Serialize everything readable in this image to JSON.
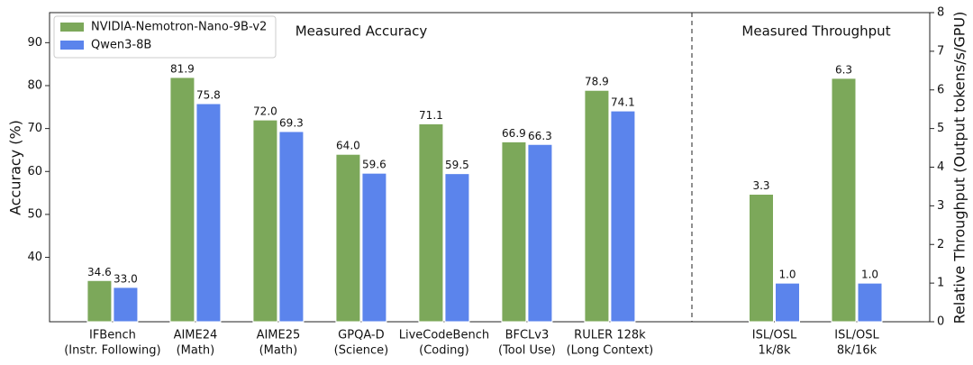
{
  "chart_data": [
    {
      "type": "bar",
      "title": "Measured Accuracy",
      "y_label": "Accuracy (%)",
      "categories": [
        [
          "IFBench",
          "(Instr. Following)"
        ],
        [
          "AIME24",
          "(Math)"
        ],
        [
          "AIME25",
          "(Math)"
        ],
        [
          "GPQA-D",
          "(Science)"
        ],
        [
          "LiveCodeBench",
          "(Coding)"
        ],
        [
          "BFCLv3",
          "(Tool Use)"
        ],
        [
          "RULER 128k",
          "(Long Context)"
        ]
      ],
      "series": [
        {
          "name": "NVIDIA-Nemotron-Nano-9B-v2",
          "color": "#7ca85a",
          "values": [
            34.6,
            81.9,
            72.0,
            64.0,
            71.1,
            66.9,
            78.9
          ],
          "value_labels": [
            "34.6",
            "81.9",
            "72.0",
            "64.0",
            "71.1",
            "66.9",
            "78.9"
          ]
        },
        {
          "name": "Qwen3-8B",
          "color": "#5b84ec",
          "values": [
            33.0,
            75.8,
            69.3,
            59.6,
            59.5,
            66.3,
            74.1
          ],
          "value_labels": [
            "33.0",
            "75.8",
            "69.3",
            "59.6",
            "59.5",
            "66.3",
            "74.1"
          ]
        }
      ],
      "ylim": [
        25,
        97
      ],
      "yticks": [
        40,
        50,
        60,
        70,
        80,
        90
      ],
      "legend": "upper left",
      "grid": false
    },
    {
      "type": "bar",
      "title": "Measured Throughput",
      "y2_label": "Relative Throughput (Output tokens/s/GPU)",
      "categories": [
        [
          "ISL/OSL",
          "1k/8k"
        ],
        [
          "ISL/OSL",
          "8k/16k"
        ]
      ],
      "series": [
        {
          "name": "NVIDIA-Nemotron-Nano-9B-v2",
          "color": "#7ca85a",
          "axis": "y2",
          "values": [
            3.3,
            6.3
          ],
          "value_labels": [
            "3.3",
            "6.3"
          ]
        },
        {
          "name": "Qwen3-8B",
          "color": "#5b84ec",
          "axis": "y2",
          "values": [
            1.0,
            1.0
          ],
          "value_labels": [
            "1.0",
            "1.0"
          ]
        }
      ],
      "y2lim": [
        0,
        8
      ],
      "y2ticks": [
        0,
        1,
        2,
        3,
        4,
        5,
        6,
        7,
        8
      ],
      "grid": false
    }
  ]
}
